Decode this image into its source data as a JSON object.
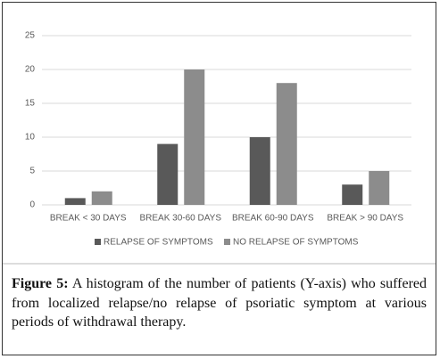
{
  "chart_data": {
    "type": "bar",
    "categories": [
      "BREAK < 30 DAYS",
      "BREAK 30-60 DAYS",
      "BREAK 60-90 DAYS",
      "BREAK > 90 DAYS"
    ],
    "series": [
      {
        "name": "RELAPSE OF SYMPTOMS",
        "color": "#595959",
        "values": [
          1,
          9,
          10,
          3
        ]
      },
      {
        "name": "NO RELAPSE OF SYMPTOMS",
        "color": "#8c8c8c",
        "values": [
          2,
          20,
          18,
          5
        ]
      }
    ],
    "ylim": [
      0,
      25
    ],
    "yticks": [
      0,
      5,
      10,
      15,
      20,
      25
    ],
    "grid": true,
    "legend": "bottom"
  },
  "caption": {
    "label": "Figure 5:",
    "text": "A histogram of the number of patients (Y-axis) who suffered from localized relapse/no relapse of psoriatic symptom at various periods of withdrawal therapy."
  }
}
